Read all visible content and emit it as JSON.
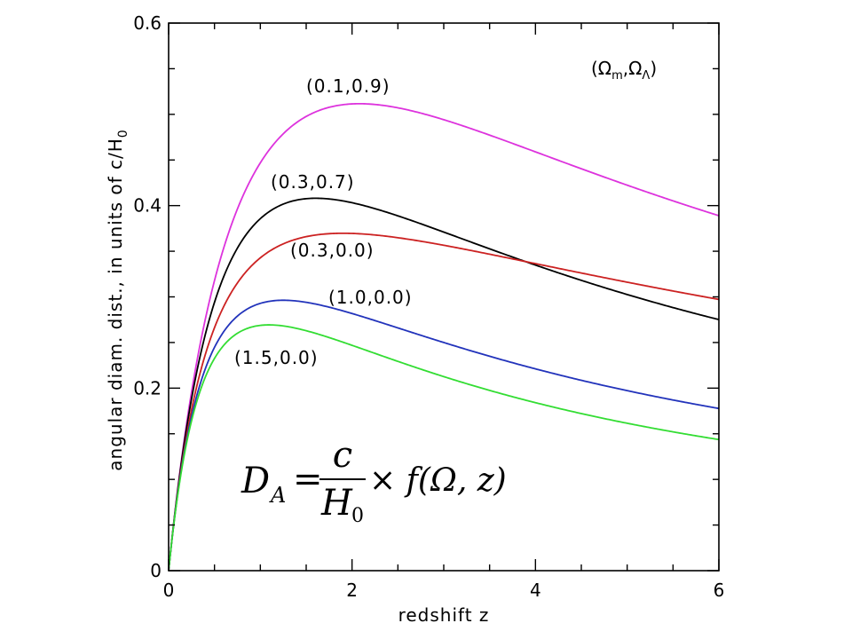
{
  "chart_data": {
    "type": "line",
    "xlabel": "redshift z",
    "ylabel_main": "angular diam. dist., in units of c/H",
    "ylabel_sub": "0",
    "xlim": [
      0,
      6
    ],
    "ylim": [
      0,
      0.6
    ],
    "x_ticks": [
      0,
      2,
      4,
      6
    ],
    "x_tick_labels": [
      "0",
      "2",
      "4",
      "6"
    ],
    "y_ticks": [
      0,
      0.2,
      0.4,
      0.6
    ],
    "y_tick_labels": [
      "0",
      "0.2",
      "0.4",
      "0.6"
    ],
    "grid": false,
    "legend_title": {
      "open": "(Ω",
      "sub1": "m",
      "mid": ",Ω",
      "sub2": "Λ",
      "close": ")"
    },
    "formula": {
      "lhs": "D",
      "lhs_sub": "A",
      "eq": "=",
      "numerator": "c",
      "denominator": "H",
      "denominator_sub": "0",
      "rhs": "× f(Ω, z)"
    },
    "series": [
      {
        "name": "(0.1,0.9)",
        "color": "#dd33dd",
        "omega_m": 0.1,
        "omega_l": 0.9,
        "peak_z": 2.1,
        "peak_value": 0.512,
        "value_at_6": 0.39
      },
      {
        "name": "(0.3,0.7)",
        "color": "#000000",
        "omega_m": 0.3,
        "omega_l": 0.7,
        "peak_z": 1.6,
        "peak_value": 0.408,
        "value_at_6": 0.276
      },
      {
        "name": "(0.3,0.0)",
        "color": "#cc2222",
        "omega_m": 0.3,
        "omega_l": 0.0,
        "peak_z": 1.9,
        "peak_value": 0.37,
        "value_at_6": 0.299
      },
      {
        "name": "(1.0,0.0)",
        "color": "#2233bb",
        "omega_m": 1.0,
        "omega_l": 0.0,
        "peak_z": 1.25,
        "peak_value": 0.296,
        "value_at_6": 0.179
      },
      {
        "name": "(1.5,0.0)",
        "color": "#33dd33",
        "omega_m": 1.5,
        "omega_l": 0.0,
        "peak_z": 1.1,
        "peak_value": 0.27,
        "value_at_6": 0.145
      }
    ]
  }
}
